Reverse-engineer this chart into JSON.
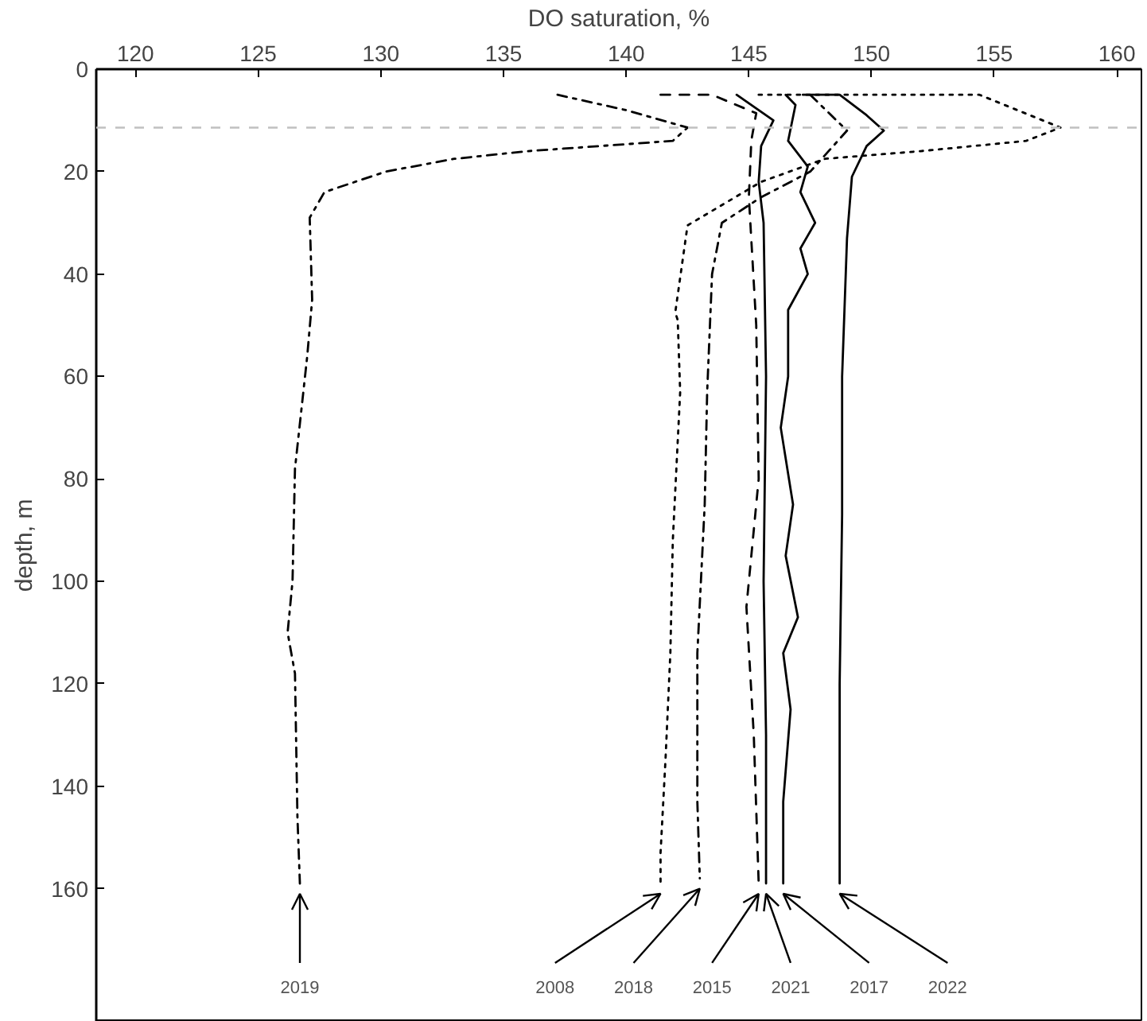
{
  "chart_data": {
    "type": "line",
    "xlabel": "DO saturation, %",
    "ylabel": "depth, m",
    "xlim": [
      118.4,
      161
    ],
    "xticks": [
      120,
      125,
      130,
      135,
      140,
      145,
      150,
      155,
      160
    ],
    "ylim": [
      186,
      0
    ],
    "yticks": [
      0,
      20,
      40,
      60,
      80,
      100,
      120,
      140,
      160
    ],
    "grid": false,
    "marker": "none",
    "ref_lines": [
      {
        "axis": "y",
        "value": 11.4,
        "color": "#c0c0c0",
        "line_style": "dashed"
      }
    ],
    "series": [
      {
        "name": "2019",
        "color": "#000000",
        "line_style": "dashdot",
        "x": [
          137.2,
          140.0,
          142.5,
          141.9,
          136.0,
          133.0,
          130.2,
          127.7,
          127.1,
          127.2,
          127.0,
          126.5,
          126.4,
          126.2,
          126.5,
          126.6,
          126.7
        ],
        "values": [
          5,
          8,
          11.4,
          14,
          16,
          17.5,
          20,
          24,
          29,
          45,
          56,
          78,
          100,
          110,
          118,
          146,
          159
        ]
      },
      {
        "name": "2008",
        "color": "#000000",
        "line_style": "dotted",
        "x": [
          145.4,
          150.0,
          154.4,
          157.7,
          156.3,
          152.0,
          148.1,
          145.5,
          142.5,
          142.0,
          142.1,
          142.2,
          141.9,
          141.8,
          141.6,
          141.4,
          141.4
        ],
        "values": [
          5,
          5,
          5,
          11.4,
          14,
          16,
          17.5,
          22,
          30.5,
          47.5,
          49,
          63,
          92,
          114,
          135,
          153,
          159
        ]
      },
      {
        "name": "2018",
        "color": "#000000",
        "line_style": "dashdot",
        "x": [
          147.5,
          149.0,
          147.5,
          145.5,
          143.9,
          143.5,
          143.3,
          143.2,
          142.9,
          142.9,
          143.0
        ],
        "values": [
          5,
          12,
          20,
          25,
          30,
          40,
          63,
          85,
          114,
          143,
          158
        ]
      },
      {
        "name": "2015",
        "color": "#000000",
        "line_style": "dashed",
        "x": [
          141.4,
          143.5,
          145.3,
          145.1,
          145.0,
          145.3,
          145.4,
          144.9,
          145.2,
          145.4
        ],
        "values": [
          5,
          5,
          8.6,
          13.9,
          25,
          50,
          80,
          105,
          130,
          159
        ]
      },
      {
        "name": "2021",
        "color": "#000000",
        "line_style": "solid",
        "x": [
          144.5,
          146.0,
          145.5,
          145.4,
          145.6,
          145.7,
          145.6,
          145.7,
          145.7
        ],
        "values": [
          5,
          10,
          15,
          22,
          30,
          60,
          100,
          130,
          159
        ]
      },
      {
        "name": "2017",
        "color": "#000000",
        "line_style": "solid",
        "x": [
          146.5,
          146.9,
          146.6,
          147.4,
          147.1,
          147.7,
          147.1,
          147.4,
          146.6,
          146.6,
          146.3,
          146.8,
          146.5,
          147.0,
          146.4,
          146.7,
          146.4,
          146.4
        ],
        "values": [
          5,
          7,
          14,
          19,
          24,
          30,
          35,
          40,
          47,
          60,
          70,
          85,
          95,
          107,
          114,
          125,
          143,
          159
        ]
      },
      {
        "name": "2022",
        "color": "#000000",
        "line_style": "solid",
        "x": [
          147.2,
          148.7,
          149.8,
          150.5,
          149.8,
          149.2,
          149.0,
          148.8,
          148.8,
          148.7,
          148.7
        ],
        "values": [
          5,
          5,
          9,
          12,
          15,
          21,
          33,
          60,
          87,
          120,
          159
        ]
      }
    ]
  }
}
